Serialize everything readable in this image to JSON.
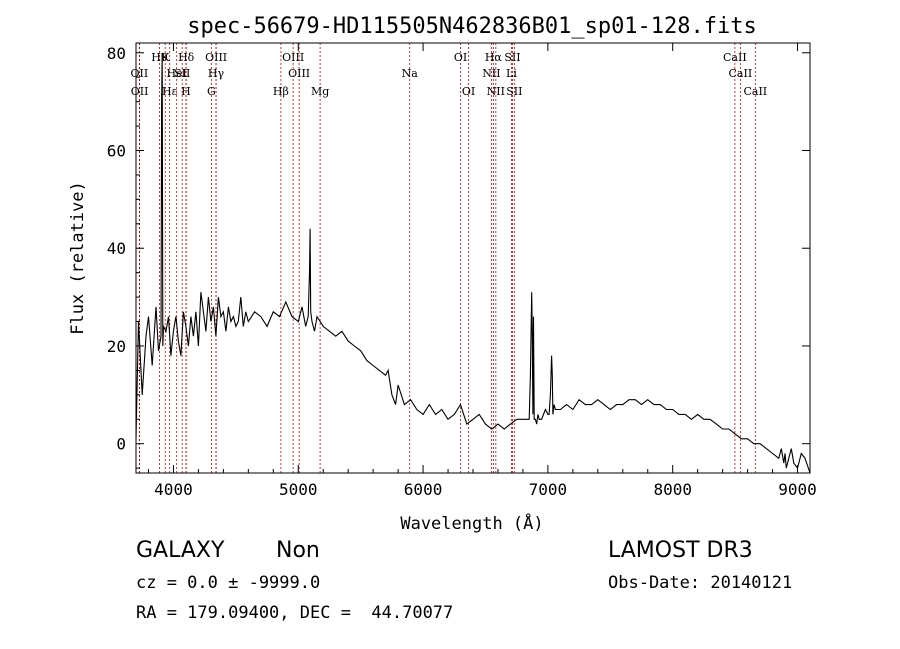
{
  "chart_data": {
    "type": "line",
    "title": "spec-56679-HD115505N462836B01_sp01-128.fits",
    "xlabel": "Wavelength (Å)",
    "ylabel": "Flux (relative)",
    "xlim": [
      3700,
      9100
    ],
    "ylim": [
      -6,
      82
    ],
    "xticks": [
      4000,
      5000,
      6000,
      7000,
      8000,
      9000
    ],
    "yticks": [
      0,
      20,
      40,
      60,
      80
    ],
    "series": [
      {
        "name": "flux",
        "x": [
          3700,
          3720,
          3750,
          3780,
          3800,
          3830,
          3860,
          3880,
          3900,
          3905,
          3910,
          3915,
          3920,
          3940,
          3960,
          3980,
          4000,
          4020,
          4040,
          4060,
          4080,
          4100,
          4120,
          4140,
          4160,
          4180,
          4200,
          4220,
          4240,
          4260,
          4280,
          4300,
          4320,
          4340,
          4360,
          4380,
          4400,
          4420,
          4440,
          4460,
          4480,
          4500,
          4520,
          4540,
          4560,
          4580,
          4600,
          4650,
          4700,
          4750,
          4800,
          4850,
          4900,
          4950,
          5000,
          5030,
          5060,
          5080,
          5090,
          5095,
          5100,
          5110,
          5130,
          5150,
          5200,
          5250,
          5300,
          5350,
          5400,
          5450,
          5500,
          5550,
          5600,
          5650,
          5700,
          5720,
          5750,
          5780,
          5800,
          5850,
          5900,
          5950,
          6000,
          6050,
          6100,
          6150,
          6200,
          6250,
          6300,
          6350,
          6400,
          6450,
          6500,
          6550,
          6600,
          6650,
          6700,
          6750,
          6800,
          6850,
          6860,
          6870,
          6875,
          6880,
          6885,
          6890,
          6900,
          6910,
          6920,
          6930,
          6950,
          6980,
          7000,
          7010,
          7020,
          7030,
          7035,
          7040,
          7050,
          7060,
          7100,
          7150,
          7200,
          7250,
          7300,
          7350,
          7400,
          7450,
          7500,
          7550,
          7600,
          7650,
          7700,
          7750,
          7800,
          7850,
          7900,
          7950,
          8000,
          8050,
          8100,
          8150,
          8200,
          8250,
          8300,
          8350,
          8400,
          8450,
          8500,
          8550,
          8600,
          8650,
          8700,
          8750,
          8800,
          8850,
          8870,
          8890,
          8900,
          8910,
          8930,
          8950,
          8970,
          9000,
          9030,
          9060,
          9100
        ],
        "y": [
          1,
          25,
          10,
          22,
          26,
          16,
          28,
          19,
          22,
          70,
          80,
          20,
          24,
          23,
          26,
          18,
          23,
          26,
          21,
          18,
          27,
          24,
          20,
          26,
          22,
          27,
          20,
          31,
          27,
          23,
          30,
          25,
          28,
          22,
          30,
          26,
          27,
          23,
          28,
          25,
          26,
          24,
          25,
          30,
          24,
          27,
          25,
          27,
          26,
          24,
          27,
          26,
          29,
          26,
          25,
          28,
          24,
          26,
          35,
          44,
          27,
          25,
          23,
          26,
          24,
          23,
          22,
          23,
          21,
          20,
          19,
          17,
          16,
          15,
          14,
          15,
          10,
          8,
          12,
          8,
          9,
          7,
          6,
          8,
          6,
          7,
          5,
          6,
          8,
          4,
          5,
          6,
          4,
          3,
          4,
          3,
          4,
          5,
          5,
          5,
          14,
          31,
          22,
          6,
          26,
          5,
          5,
          4,
          6,
          5,
          5,
          7,
          6,
          6,
          10,
          18,
          14,
          6,
          8,
          7,
          7,
          8,
          7,
          9,
          8,
          8,
          9,
          8,
          7,
          8,
          8,
          9,
          9,
          8,
          9,
          8,
          8,
          7,
          7,
          6,
          6,
          5,
          6,
          5,
          5,
          4,
          3,
          3,
          2,
          1,
          1,
          0,
          0,
          -1,
          -2,
          -3,
          -1,
          -4,
          -2,
          -5,
          -3,
          -1,
          -4,
          -5,
          -2,
          -3,
          -6
        ]
      }
    ],
    "line_markers": [
      {
        "wl": 3727,
        "label": "OII",
        "row": 2
      },
      {
        "wl": 3729,
        "label": "OII",
        "row": 3
      },
      {
        "wl": 3889,
        "label": "H9",
        "row": 1
      },
      {
        "wl": 3934,
        "label": "K",
        "row": 1
      },
      {
        "wl": 3970,
        "label": "Hε",
        "row": 3
      },
      {
        "wl": 4026,
        "label": "HeI",
        "row": 2
      },
      {
        "wl": 4102,
        "label": "Hδ",
        "row": 1
      },
      {
        "wl": 4070,
        "label": "SII",
        "row": 2
      },
      {
        "wl": 4100,
        "label": "H",
        "row": 3
      },
      {
        "wl": 4342,
        "label": "OIII",
        "row": 1
      },
      {
        "wl": 4341,
        "label": "Hγ",
        "row": 2
      },
      {
        "wl": 4304,
        "label": "G",
        "row": 3
      },
      {
        "wl": 4861,
        "label": "Hβ",
        "row": 3
      },
      {
        "wl": 4959,
        "label": "OIII",
        "row": 1
      },
      {
        "wl": 5007,
        "label": "OIII",
        "row": 2
      },
      {
        "wl": 5175,
        "label": "Mg",
        "row": 3
      },
      {
        "wl": 5893,
        "label": "Na",
        "row": 2
      },
      {
        "wl": 6300,
        "label": "OI",
        "row": 1
      },
      {
        "wl": 6364,
        "label": "OI",
        "row": 3
      },
      {
        "wl": 6563,
        "label": "Hα",
        "row": 1
      },
      {
        "wl": 6548,
        "label": "NII",
        "row": 2
      },
      {
        "wl": 6583,
        "label": "NII",
        "row": 3
      },
      {
        "wl": 6716,
        "label": "SII",
        "row": 1
      },
      {
        "wl": 6708,
        "label": "Li",
        "row": 2
      },
      {
        "wl": 6731,
        "label": "SII",
        "row": 3
      },
      {
        "wl": 8498,
        "label": "CaII",
        "row": 1
      },
      {
        "wl": 8542,
        "label": "CaII",
        "row": 2
      },
      {
        "wl": 8662,
        "label": "CaII",
        "row": 3
      }
    ],
    "grid": false,
    "colors": {
      "spectrum": "#000000",
      "markers": "#cc0000",
      "axes": "#000000"
    }
  },
  "info": {
    "object_class": "GALAXY",
    "subclass": "Non",
    "survey": "LAMOST DR3",
    "redshift": "cz = 0.0 ± -9999.0",
    "obs_date": "Obs-Date: 20140121",
    "coords": "RA = 179.09400, DEC =  44.70077"
  }
}
